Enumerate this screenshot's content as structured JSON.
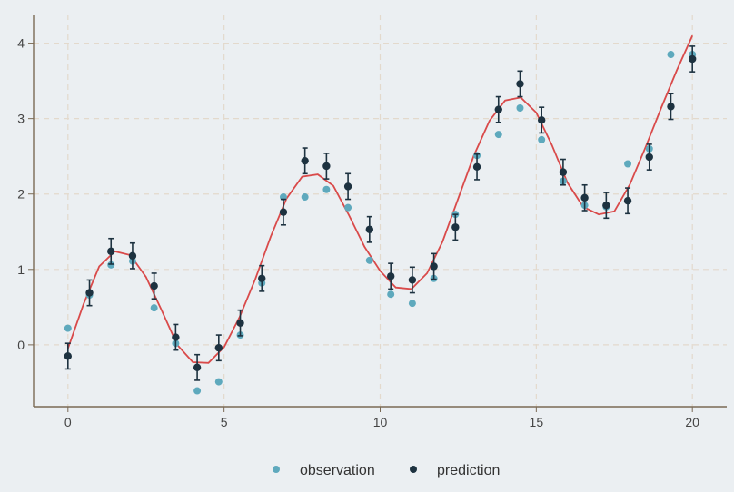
{
  "chart_data": {
    "type": "scatter",
    "x_ticks": [
      0,
      5,
      10,
      15,
      20
    ],
    "y_ticks": [
      0,
      1,
      2,
      3,
      4
    ],
    "xlim": [
      -1.1,
      21.1
    ],
    "ylim": [
      -0.82,
      4.38
    ],
    "grid": true,
    "legend_position": "bottom",
    "series": [
      {
        "name": "observation",
        "kind": "points",
        "color": "#5ea9bd",
        "x": [
          0,
          0.69,
          1.38,
          2.07,
          2.76,
          3.45,
          4.14,
          4.83,
          5.52,
          6.21,
          6.9,
          7.59,
          8.28,
          8.97,
          9.66,
          10.34,
          11.03,
          11.72,
          12.41,
          13.1,
          13.79,
          14.48,
          15.17,
          15.86,
          16.55,
          17.24,
          17.93,
          18.62,
          19.31,
          20.0
        ],
        "y": [
          0.22,
          0.66,
          1.06,
          1.11,
          0.49,
          0.02,
          -0.61,
          -0.49,
          0.13,
          0.82,
          1.96,
          1.96,
          2.06,
          1.82,
          1.12,
          0.67,
          0.55,
          0.88,
          1.73,
          2.51,
          2.79,
          3.14,
          2.72,
          2.17,
          1.85,
          1.83,
          2.4,
          2.6,
          3.85,
          3.85
        ]
      },
      {
        "name": "prediction",
        "kind": "points_with_error_bars",
        "color": "#1d3240",
        "x": [
          0,
          0.69,
          1.38,
          2.07,
          2.76,
          3.45,
          4.14,
          4.83,
          5.52,
          6.21,
          6.9,
          7.59,
          8.28,
          8.97,
          9.66,
          10.34,
          11.03,
          11.72,
          12.41,
          13.1,
          13.79,
          14.48,
          15.17,
          15.86,
          16.55,
          17.24,
          17.93,
          18.62,
          19.31,
          20.0
        ],
        "y": [
          -0.15,
          0.69,
          1.24,
          1.18,
          0.78,
          0.1,
          -0.3,
          -0.04,
          0.29,
          0.88,
          1.76,
          2.44,
          2.37,
          2.1,
          1.53,
          0.91,
          0.86,
          1.04,
          1.56,
          2.36,
          3.12,
          3.46,
          2.98,
          2.29,
          1.95,
          1.85,
          1.91,
          2.49,
          3.16,
          3.79
        ],
        "error": 0.17
      },
      {
        "kind": "curve",
        "color": "#d94a4a",
        "x": [
          0,
          0.5,
          1,
          1.5,
          2,
          2.5,
          3,
          3.5,
          4,
          4.5,
          5,
          5.5,
          6,
          6.5,
          7,
          7.5,
          8,
          8.5,
          9,
          9.5,
          10,
          10.5,
          11,
          11.5,
          12,
          12.5,
          13,
          13.5,
          14,
          14.5,
          15,
          15.5,
          16,
          16.5,
          17,
          17.5,
          18,
          18.5,
          19,
          19.5,
          20
        ],
        "y": [
          -0.05,
          0.54,
          1.04,
          1.24,
          1.19,
          0.9,
          0.46,
          0.0,
          -0.23,
          -0.24,
          -0.03,
          0.37,
          0.87,
          1.44,
          1.94,
          2.23,
          2.26,
          2.11,
          1.72,
          1.3,
          0.98,
          0.76,
          0.74,
          0.95,
          1.37,
          1.94,
          2.51,
          2.97,
          3.24,
          3.28,
          3.08,
          2.65,
          2.15,
          1.83,
          1.73,
          1.77,
          2.13,
          2.62,
          3.14,
          3.64,
          4.1
        ]
      }
    ]
  }
}
